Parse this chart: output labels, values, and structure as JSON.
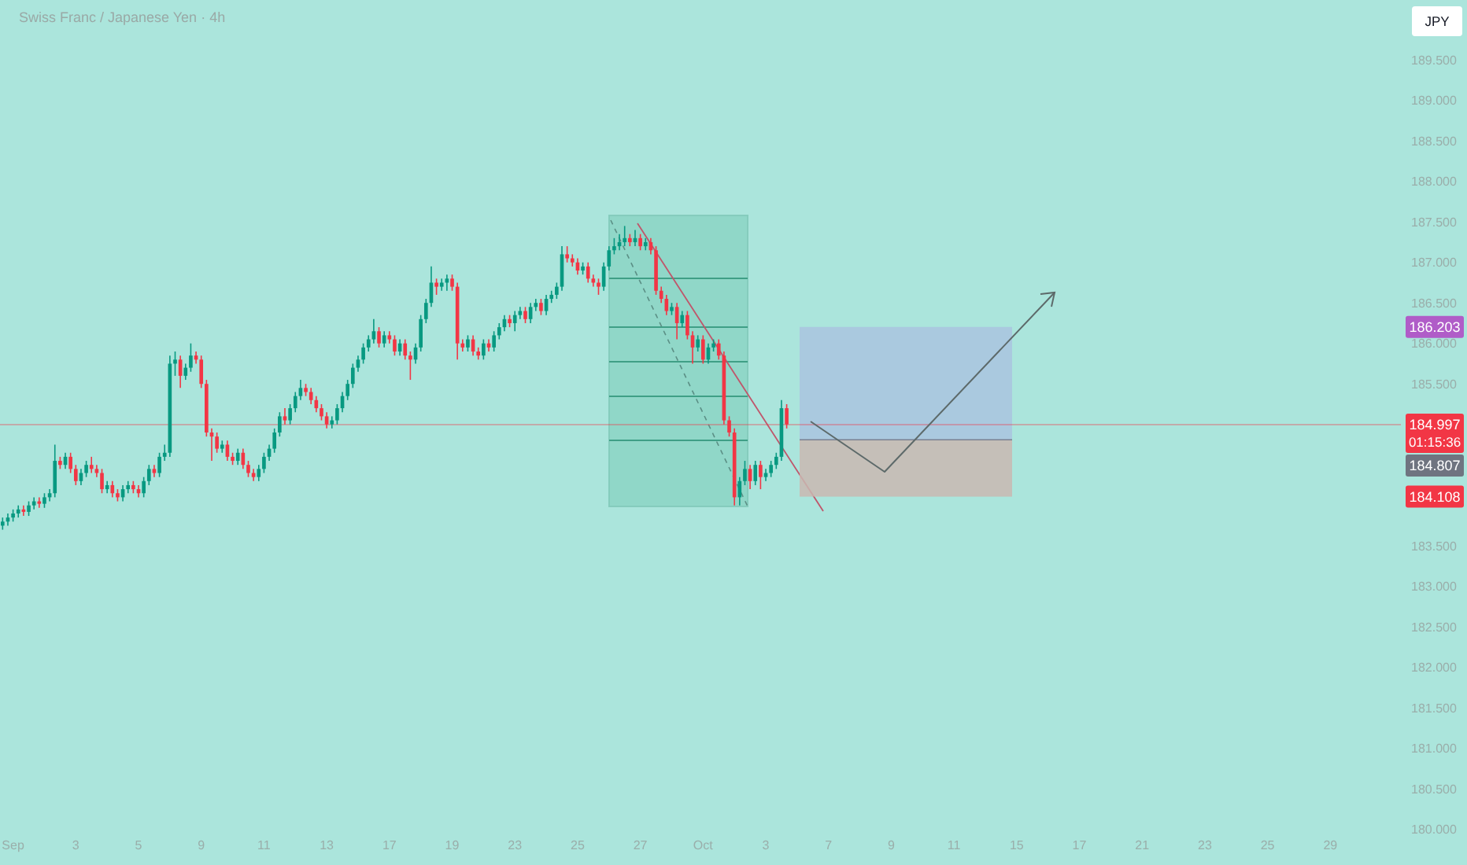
{
  "chart_data": {
    "type": "candlestick",
    "title": "Swiss Franc / Japanese Yen · 4h",
    "categories": [
      null,
      null,
      "Sep",
      null,
      null,
      null,
      null,
      null,
      null,
      null,
      null,
      null,
      null,
      null,
      "3",
      null,
      null,
      null,
      null,
      null,
      null,
      null,
      null,
      null,
      null,
      null,
      "5",
      null,
      null,
      null,
      null,
      null,
      null,
      null,
      null,
      null,
      null,
      null,
      "9",
      null,
      null,
      null,
      null,
      null,
      null,
      null,
      null,
      null,
      null,
      null,
      "11",
      null,
      null,
      null,
      null,
      null,
      null,
      null,
      null,
      null,
      null,
      null,
      "13",
      null,
      null,
      null,
      null,
      null,
      null,
      null,
      null,
      null,
      null,
      null,
      "17",
      null,
      null,
      null,
      null,
      null,
      null,
      null,
      null,
      null,
      null,
      null,
      "19",
      null,
      null,
      null,
      null,
      null,
      null,
      null,
      null,
      null,
      null,
      null,
      "23",
      null,
      null,
      null,
      null,
      null,
      null,
      null,
      null,
      null,
      null,
      null,
      "25",
      null,
      null,
      null,
      null,
      null,
      null,
      null,
      null,
      null,
      null,
      null,
      "27",
      null,
      null,
      null,
      null,
      null,
      null,
      null,
      null,
      null,
      null,
      null,
      "Oct",
      null,
      null,
      null,
      null,
      null,
      null,
      null,
      null,
      null,
      null,
      null,
      "3",
      null,
      null,
      null,
      null,
      null,
      null,
      null,
      null,
      null,
      null,
      null,
      "7",
      null,
      null,
      null,
      null,
      null,
      null,
      null,
      null,
      null,
      null,
      null,
      "9",
      null,
      null,
      null,
      null,
      null,
      null,
      null,
      null,
      null,
      null,
      null,
      "11",
      null,
      null,
      null,
      null,
      null,
      null,
      null,
      null,
      null,
      null,
      null,
      "15",
      null,
      null,
      null,
      null,
      null,
      null,
      null,
      null,
      null,
      null,
      null,
      "17",
      null,
      null,
      null,
      null,
      null,
      null,
      null,
      null,
      null,
      null,
      null,
      "21",
      null,
      null,
      null,
      null,
      null,
      null,
      null,
      null,
      null,
      null,
      null,
      "23",
      null,
      null,
      null,
      null,
      null,
      null,
      null,
      null,
      null,
      null,
      null,
      "25",
      null,
      null,
      null,
      null,
      null,
      null,
      null,
      null,
      null,
      null,
      null,
      "29",
      null,
      null,
      null,
      null,
      null,
      null,
      null,
      null,
      null,
      null,
      null,
      null,
      null
    ],
    "ohlc": [
      [
        183.75,
        183.85,
        183.7,
        183.8
      ],
      [
        183.8,
        183.9,
        183.75,
        183.85
      ],
      [
        183.85,
        183.95,
        183.8,
        183.9
      ],
      [
        183.9,
        184.0,
        183.85,
        183.95
      ],
      [
        183.95,
        184.0,
        183.87,
        183.92
      ],
      [
        183.92,
        184.05,
        183.87,
        184.0
      ],
      [
        184.0,
        184.1,
        183.95,
        184.05
      ],
      [
        184.05,
        184.1,
        183.97,
        184.02
      ],
      [
        184.02,
        184.15,
        183.97,
        184.1
      ],
      [
        184.1,
        184.2,
        184.05,
        184.15
      ],
      [
        184.15,
        184.75,
        184.1,
        184.55
      ],
      [
        184.55,
        184.6,
        184.45,
        184.5
      ],
      [
        184.5,
        184.65,
        184.45,
        184.6
      ],
      [
        184.6,
        184.65,
        184.4,
        184.45
      ],
      [
        184.45,
        184.5,
        184.25,
        184.3
      ],
      [
        184.3,
        184.45,
        184.25,
        184.4
      ],
      [
        184.4,
        184.55,
        184.35,
        184.5
      ],
      [
        184.5,
        184.6,
        184.4,
        184.45
      ],
      [
        184.45,
        184.5,
        184.35,
        184.4
      ],
      [
        184.4,
        184.45,
        184.15,
        184.2
      ],
      [
        184.2,
        184.3,
        184.15,
        184.25
      ],
      [
        184.25,
        184.3,
        184.1,
        184.15
      ],
      [
        184.15,
        184.2,
        184.05,
        184.1
      ],
      [
        184.1,
        184.25,
        184.05,
        184.2
      ],
      [
        184.2,
        184.3,
        184.15,
        184.25
      ],
      [
        184.25,
        184.3,
        184.15,
        184.2
      ],
      [
        184.2,
        184.25,
        184.1,
        184.15
      ],
      [
        184.15,
        184.35,
        184.1,
        184.3
      ],
      [
        184.3,
        184.5,
        184.25,
        184.45
      ],
      [
        184.45,
        184.5,
        184.35,
        184.4
      ],
      [
        184.4,
        184.65,
        184.35,
        184.6
      ],
      [
        184.6,
        184.75,
        184.55,
        184.65
      ],
      [
        184.65,
        185.85,
        184.6,
        185.75
      ],
      [
        185.75,
        185.9,
        185.6,
        185.8
      ],
      [
        185.8,
        185.85,
        185.45,
        185.6
      ],
      [
        185.6,
        185.75,
        185.55,
        185.7
      ],
      [
        185.7,
        186.0,
        185.65,
        185.85
      ],
      [
        185.85,
        185.9,
        185.75,
        185.8
      ],
      [
        185.8,
        185.85,
        185.45,
        185.5
      ],
      [
        185.5,
        185.55,
        184.85,
        184.9
      ],
      [
        184.9,
        184.95,
        184.55,
        184.85
      ],
      [
        184.85,
        184.9,
        184.65,
        184.7
      ],
      [
        184.7,
        184.8,
        184.65,
        184.75
      ],
      [
        184.75,
        184.8,
        184.55,
        184.6
      ],
      [
        184.6,
        184.65,
        184.5,
        184.55
      ],
      [
        184.55,
        184.7,
        184.5,
        184.65
      ],
      [
        184.65,
        184.7,
        184.45,
        184.5
      ],
      [
        184.5,
        184.55,
        184.35,
        184.4
      ],
      [
        184.4,
        184.45,
        184.3,
        184.35
      ],
      [
        184.35,
        184.5,
        184.3,
        184.45
      ],
      [
        184.45,
        184.65,
        184.4,
        184.6
      ],
      [
        184.6,
        184.75,
        184.55,
        184.7
      ],
      [
        184.7,
        184.95,
        184.65,
        184.9
      ],
      [
        184.9,
        185.15,
        184.85,
        185.1
      ],
      [
        185.1,
        185.2,
        185.0,
        185.05
      ],
      [
        185.05,
        185.25,
        185.0,
        185.2
      ],
      [
        185.2,
        185.4,
        185.15,
        185.35
      ],
      [
        185.35,
        185.55,
        185.3,
        185.45
      ],
      [
        185.45,
        185.5,
        185.35,
        185.4
      ],
      [
        185.4,
        185.45,
        185.25,
        185.3
      ],
      [
        185.3,
        185.35,
        185.15,
        185.2
      ],
      [
        185.2,
        185.25,
        185.05,
        185.1
      ],
      [
        185.1,
        185.15,
        184.95,
        185.0
      ],
      [
        185.0,
        185.1,
        184.95,
        185.05
      ],
      [
        185.05,
        185.25,
        185.0,
        185.2
      ],
      [
        185.2,
        185.4,
        185.15,
        185.35
      ],
      [
        185.35,
        185.55,
        185.3,
        185.5
      ],
      [
        185.5,
        185.75,
        185.45,
        185.7
      ],
      [
        185.7,
        185.85,
        185.65,
        185.8
      ],
      [
        185.8,
        186.0,
        185.75,
        185.95
      ],
      [
        185.95,
        186.1,
        185.9,
        186.05
      ],
      [
        186.05,
        186.3,
        186.0,
        186.15
      ],
      [
        186.15,
        186.2,
        185.95,
        186.0
      ],
      [
        186.0,
        186.15,
        185.95,
        186.1
      ],
      [
        186.1,
        186.15,
        186.0,
        186.05
      ],
      [
        186.05,
        186.1,
        185.85,
        185.9
      ],
      [
        185.9,
        186.05,
        185.85,
        186.0
      ],
      [
        186.0,
        186.05,
        185.8,
        185.85
      ],
      [
        185.85,
        185.9,
        185.55,
        185.8
      ],
      [
        185.8,
        186.0,
        185.75,
        185.95
      ],
      [
        185.95,
        186.35,
        185.9,
        186.3
      ],
      [
        186.3,
        186.55,
        186.25,
        186.5
      ],
      [
        186.5,
        186.95,
        186.45,
        186.75
      ],
      [
        186.75,
        186.8,
        186.6,
        186.7
      ],
      [
        186.7,
        186.8,
        186.65,
        186.75
      ],
      [
        186.75,
        186.85,
        186.65,
        186.8
      ],
      [
        186.8,
        186.85,
        186.65,
        186.7
      ],
      [
        186.7,
        186.75,
        185.8,
        186.0
      ],
      [
        186.0,
        186.05,
        185.9,
        185.95
      ],
      [
        185.95,
        186.1,
        185.9,
        186.05
      ],
      [
        186.05,
        186.1,
        185.85,
        185.9
      ],
      [
        185.9,
        185.95,
        185.8,
        185.85
      ],
      [
        185.85,
        186.05,
        185.8,
        186.0
      ],
      [
        186.0,
        186.05,
        185.9,
        185.95
      ],
      [
        185.95,
        186.15,
        185.9,
        186.1
      ],
      [
        186.1,
        186.25,
        186.05,
        186.2
      ],
      [
        186.2,
        186.35,
        186.15,
        186.3
      ],
      [
        186.3,
        186.35,
        186.2,
        186.25
      ],
      [
        186.25,
        186.4,
        186.15,
        186.35
      ],
      [
        186.35,
        186.45,
        186.3,
        186.4
      ],
      [
        186.4,
        186.45,
        186.25,
        186.3
      ],
      [
        186.3,
        186.5,
        186.25,
        186.45
      ],
      [
        186.45,
        186.55,
        186.4,
        186.5
      ],
      [
        186.5,
        186.55,
        186.35,
        186.4
      ],
      [
        186.4,
        186.6,
        186.35,
        186.55
      ],
      [
        186.55,
        186.65,
        186.5,
        186.6
      ],
      [
        186.6,
        186.75,
        186.55,
        186.7
      ],
      [
        186.7,
        187.2,
        186.65,
        187.1
      ],
      [
        187.1,
        187.2,
        187.0,
        187.05
      ],
      [
        187.05,
        187.1,
        186.95,
        187.0
      ],
      [
        187.0,
        187.05,
        186.85,
        186.9
      ],
      [
        186.9,
        187.0,
        186.85,
        186.95
      ],
      [
        186.95,
        187.0,
        186.75,
        186.8
      ],
      [
        186.8,
        186.85,
        186.7,
        186.75
      ],
      [
        186.75,
        186.8,
        186.6,
        186.7
      ],
      [
        186.7,
        187.0,
        186.65,
        186.95
      ],
      [
        186.95,
        187.2,
        186.9,
        187.15
      ],
      [
        187.15,
        187.3,
        187.1,
        187.2
      ],
      [
        187.2,
        187.35,
        187.15,
        187.25
      ],
      [
        187.25,
        187.45,
        187.2,
        187.3
      ],
      [
        187.3,
        187.35,
        187.2,
        187.25
      ],
      [
        187.25,
        187.4,
        187.2,
        187.3
      ],
      [
        187.3,
        187.35,
        187.15,
        187.2
      ],
      [
        187.2,
        187.3,
        187.15,
        187.25
      ],
      [
        187.25,
        187.3,
        187.1,
        187.15
      ],
      [
        187.15,
        187.2,
        186.6,
        186.65
      ],
      [
        186.65,
        186.7,
        186.5,
        186.55
      ],
      [
        186.55,
        186.6,
        186.35,
        186.4
      ],
      [
        186.4,
        186.5,
        186.35,
        186.45
      ],
      [
        186.45,
        186.5,
        186.05,
        186.25
      ],
      [
        186.25,
        186.4,
        186.2,
        186.35
      ],
      [
        186.35,
        186.4,
        186.05,
        186.1
      ],
      [
        186.1,
        186.15,
        185.75,
        185.95
      ],
      [
        185.95,
        186.1,
        185.9,
        186.05
      ],
      [
        186.05,
        186.1,
        185.75,
        185.8
      ],
      [
        185.8,
        186.0,
        185.75,
        185.95
      ],
      [
        185.95,
        186.05,
        185.9,
        186.0
      ],
      [
        186.0,
        186.05,
        185.8,
        185.85
      ],
      [
        185.85,
        185.9,
        185.0,
        185.05
      ],
      [
        185.05,
        185.1,
        184.85,
        184.9
      ],
      [
        184.9,
        184.95,
        184.0,
        184.1
      ],
      [
        184.1,
        184.35,
        184.0,
        184.3
      ],
      [
        184.3,
        184.55,
        184.25,
        184.45
      ],
      [
        184.45,
        184.5,
        184.2,
        184.3
      ],
      [
        184.3,
        184.55,
        184.25,
        184.5
      ],
      [
        184.5,
        184.55,
        184.2,
        184.35
      ],
      [
        184.35,
        184.45,
        184.3,
        184.4
      ],
      [
        184.4,
        184.55,
        184.35,
        184.5
      ],
      [
        184.5,
        184.65,
        184.45,
        184.6
      ],
      [
        184.6,
        185.3,
        184.55,
        185.2
      ],
      [
        185.2,
        185.25,
        184.95,
        185.0
      ],
      null,
      null,
      null,
      null,
      null,
      null,
      null,
      null,
      null,
      null,
      null,
      null,
      null,
      null,
      null,
      null,
      null,
      null,
      null,
      null,
      null,
      null,
      null,
      null,
      null,
      null,
      null,
      null,
      null,
      null,
      null,
      null,
      null,
      null,
      null,
      null,
      null,
      null,
      null,
      null,
      null,
      null,
      null,
      null,
      null,
      null,
      null,
      null,
      null,
      null,
      null,
      null,
      null,
      null,
      null,
      null,
      null,
      null,
      null,
      null,
      null,
      null,
      null,
      null,
      null,
      null,
      null,
      null,
      null,
      null,
      null,
      null,
      null,
      null,
      null,
      null,
      null,
      null,
      null,
      null,
      null,
      null,
      null,
      null,
      null,
      null,
      null,
      null,
      null,
      null,
      null,
      null,
      null,
      null,
      null,
      null,
      null,
      null,
      null,
      null,
      null,
      null,
      null,
      null,
      null,
      null,
      null,
      null,
      null,
      null,
      null,
      null,
      null,
      null,
      null,
      null,
      null
    ],
    "ylim": [
      179.56,
      190.24
    ],
    "yticks": [
      {
        "value": 180,
        "label": "180.000"
      },
      {
        "value": 180.5,
        "label": "180.500"
      },
      {
        "value": 181,
        "label": "181.000"
      },
      {
        "value": 181.5,
        "label": "181.500"
      },
      {
        "value": 182,
        "label": "182.000"
      },
      {
        "value": 182.5,
        "label": "182.500"
      },
      {
        "value": 183,
        "label": "183.000"
      },
      {
        "value": 183.5,
        "label": "183.500"
      },
      {
        "value": 185.5,
        "label": "185.500"
      },
      {
        "value": 186,
        "label": "186.000"
      },
      {
        "value": 186.5,
        "label": "186.500"
      },
      {
        "value": 187,
        "label": "187.000"
      },
      {
        "value": 187.5,
        "label": "187.500"
      },
      {
        "value": 188,
        "label": "188.000"
      },
      {
        "value": 188.5,
        "label": "188.500"
      },
      {
        "value": 189,
        "label": "189.000"
      },
      {
        "value": 189.5,
        "label": "189.500"
      }
    ],
    "ref_lines": [
      {
        "axis": "y",
        "value": 184.997,
        "label": "184.997",
        "color": "#f23645"
      }
    ],
    "annotations": [
      {
        "text": "186.203",
        "y": 186.203
      },
      {
        "text": "184.108",
        "y": 184.108
      },
      "01:15:36",
      "184.807",
      "JPY"
    ]
  }
}
